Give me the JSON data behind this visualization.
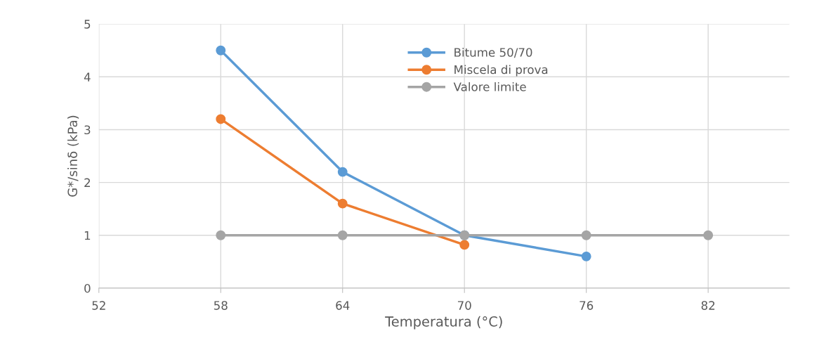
{
  "chart_data": {
    "type": "line",
    "xlabel": "Temperatura (°C)",
    "ylabel": "G*/sinδ (kPa)",
    "xlim": [
      52,
      86
    ],
    "xticks": [
      52,
      58,
      64,
      70,
      76,
      82
    ],
    "ylim": [
      0,
      5
    ],
    "yticks": [
      0,
      1,
      2,
      3,
      4,
      5
    ],
    "grid": true,
    "legend": "top",
    "marker": "circle",
    "line_style": "solid",
    "series": [
      {
        "name": "Bitume 50/70",
        "color": "#5b9bd5",
        "x": [
          58,
          64,
          70,
          76
        ],
        "values": [
          4.5,
          2.2,
          1.0,
          0.6
        ]
      },
      {
        "name": "Miscela di prova",
        "color": "#ed7d31",
        "x": [
          58,
          64,
          70
        ],
        "values": [
          3.2,
          1.6,
          0.82
        ]
      },
      {
        "name": "Valore limite",
        "color": "#a5a5a5",
        "x": [
          58,
          64,
          70,
          76,
          82
        ],
        "values": [
          1,
          1,
          1,
          1,
          1
        ]
      }
    ]
  }
}
